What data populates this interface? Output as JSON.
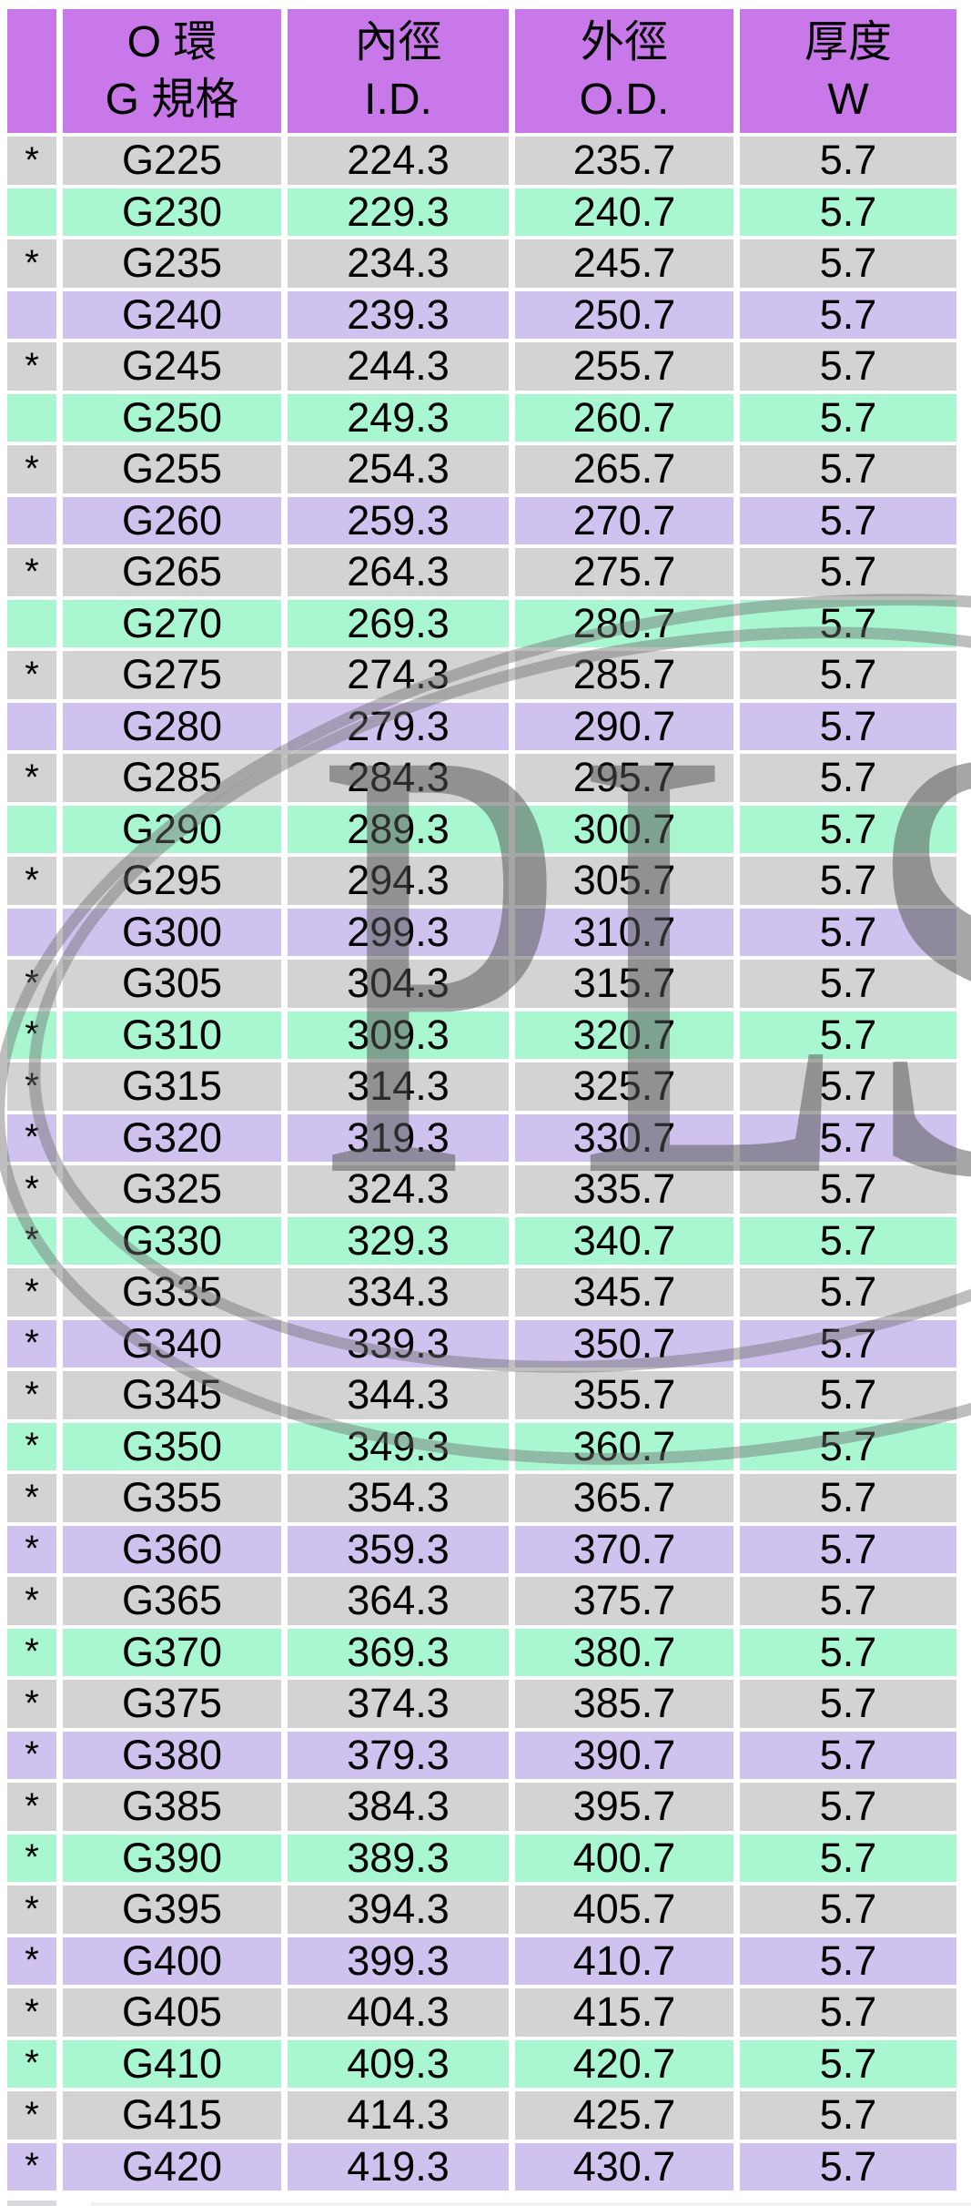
{
  "colors": {
    "header_purple": "#c878e8",
    "row_gray": "#d3d3d3",
    "row_mint": "#a9f7d1",
    "row_lavender": "#d0c2ef",
    "watermark_gray": "#6e6e6e",
    "text_black": "#000000",
    "page_background": "#ffffff"
  },
  "watermark": {
    "text": "PLS"
  },
  "table": {
    "star_symbol": "*",
    "headers": [
      {
        "line1": "O 環",
        "line2": "G 規格"
      },
      {
        "line1": "內徑",
        "line2": "I.D."
      },
      {
        "line1": "外徑",
        "line2": "O.D."
      },
      {
        "line1": "厚度",
        "line2": "W"
      }
    ],
    "rows": [
      {
        "starred": true,
        "spec": "G225",
        "id": "224.3",
        "od": "235.7",
        "w": "5.7",
        "color": "gray"
      },
      {
        "starred": false,
        "spec": "G230",
        "id": "229.3",
        "od": "240.7",
        "w": "5.7",
        "color": "mint"
      },
      {
        "starred": true,
        "spec": "G235",
        "id": "234.3",
        "od": "245.7",
        "w": "5.7",
        "color": "gray"
      },
      {
        "starred": false,
        "spec": "G240",
        "id": "239.3",
        "od": "250.7",
        "w": "5.7",
        "color": "lavender"
      },
      {
        "starred": true,
        "spec": "G245",
        "id": "244.3",
        "od": "255.7",
        "w": "5.7",
        "color": "gray"
      },
      {
        "starred": false,
        "spec": "G250",
        "id": "249.3",
        "od": "260.7",
        "w": "5.7",
        "color": "mint"
      },
      {
        "starred": true,
        "spec": "G255",
        "id": "254.3",
        "od": "265.7",
        "w": "5.7",
        "color": "gray"
      },
      {
        "starred": false,
        "spec": "G260",
        "id": "259.3",
        "od": "270.7",
        "w": "5.7",
        "color": "lavender"
      },
      {
        "starred": true,
        "spec": "G265",
        "id": "264.3",
        "od": "275.7",
        "w": "5.7",
        "color": "gray"
      },
      {
        "starred": false,
        "spec": "G270",
        "id": "269.3",
        "od": "280.7",
        "w": "5.7",
        "color": "mint"
      },
      {
        "starred": true,
        "spec": "G275",
        "id": "274.3",
        "od": "285.7",
        "w": "5.7",
        "color": "gray"
      },
      {
        "starred": false,
        "spec": "G280",
        "id": "279.3",
        "od": "290.7",
        "w": "5.7",
        "color": "lavender"
      },
      {
        "starred": true,
        "spec": "G285",
        "id": "284.3",
        "od": "295.7",
        "w": "5.7",
        "color": "gray"
      },
      {
        "starred": false,
        "spec": "G290",
        "id": "289.3",
        "od": "300.7",
        "w": "5.7",
        "color": "mint"
      },
      {
        "starred": true,
        "spec": "G295",
        "id": "294.3",
        "od": "305.7",
        "w": "5.7",
        "color": "gray"
      },
      {
        "starred": false,
        "spec": "G300",
        "id": "299.3",
        "od": "310.7",
        "w": "5.7",
        "color": "lavender"
      },
      {
        "starred": true,
        "spec": "G305",
        "id": "304.3",
        "od": "315.7",
        "w": "5.7",
        "color": "gray"
      },
      {
        "starred": true,
        "spec": "G310",
        "id": "309.3",
        "od": "320.7",
        "w": "5.7",
        "color": "mint"
      },
      {
        "starred": true,
        "spec": "G315",
        "id": "314.3",
        "od": "325.7",
        "w": "5.7",
        "color": "gray"
      },
      {
        "starred": true,
        "spec": "G320",
        "id": "319.3",
        "od": "330.7",
        "w": "5.7",
        "color": "lavender"
      },
      {
        "starred": true,
        "spec": "G325",
        "id": "324.3",
        "od": "335.7",
        "w": "5.7",
        "color": "gray"
      },
      {
        "starred": true,
        "spec": "G330",
        "id": "329.3",
        "od": "340.7",
        "w": "5.7",
        "color": "mint"
      },
      {
        "starred": true,
        "spec": "G335",
        "id": "334.3",
        "od": "345.7",
        "w": "5.7",
        "color": "gray"
      },
      {
        "starred": true,
        "spec": "G340",
        "id": "339.3",
        "od": "350.7",
        "w": "5.7",
        "color": "lavender"
      },
      {
        "starred": true,
        "spec": "G345",
        "id": "344.3",
        "od": "355.7",
        "w": "5.7",
        "color": "gray"
      },
      {
        "starred": true,
        "spec": "G350",
        "id": "349.3",
        "od": "360.7",
        "w": "5.7",
        "color": "mint"
      },
      {
        "starred": true,
        "spec": "G355",
        "id": "354.3",
        "od": "365.7",
        "w": "5.7",
        "color": "gray"
      },
      {
        "starred": true,
        "spec": "G360",
        "id": "359.3",
        "od": "370.7",
        "w": "5.7",
        "color": "lavender"
      },
      {
        "starred": true,
        "spec": "G365",
        "id": "364.3",
        "od": "375.7",
        "w": "5.7",
        "color": "gray"
      },
      {
        "starred": true,
        "spec": "G370",
        "id": "369.3",
        "od": "380.7",
        "w": "5.7",
        "color": "mint"
      },
      {
        "starred": true,
        "spec": "G375",
        "id": "374.3",
        "od": "385.7",
        "w": "5.7",
        "color": "gray"
      },
      {
        "starred": true,
        "spec": "G380",
        "id": "379.3",
        "od": "390.7",
        "w": "5.7",
        "color": "lavender"
      },
      {
        "starred": true,
        "spec": "G385",
        "id": "384.3",
        "od": "395.7",
        "w": "5.7",
        "color": "gray"
      },
      {
        "starred": true,
        "spec": "G390",
        "id": "389.3",
        "od": "400.7",
        "w": "5.7",
        "color": "mint"
      },
      {
        "starred": true,
        "spec": "G395",
        "id": "394.3",
        "od": "405.7",
        "w": "5.7",
        "color": "gray"
      },
      {
        "starred": true,
        "spec": "G400",
        "id": "399.3",
        "od": "410.7",
        "w": "5.7",
        "color": "lavender"
      },
      {
        "starred": true,
        "spec": "G405",
        "id": "404.3",
        "od": "415.7",
        "w": "5.7",
        "color": "gray"
      },
      {
        "starred": true,
        "spec": "G410",
        "id": "409.3",
        "od": "420.7",
        "w": "5.7",
        "color": "mint"
      },
      {
        "starred": true,
        "spec": "G415",
        "id": "414.3",
        "od": "425.7",
        "w": "5.7",
        "color": "gray"
      },
      {
        "starred": true,
        "spec": "G420",
        "id": "419.3",
        "od": "430.7",
        "w": "5.7",
        "color": "lavender"
      }
    ]
  }
}
